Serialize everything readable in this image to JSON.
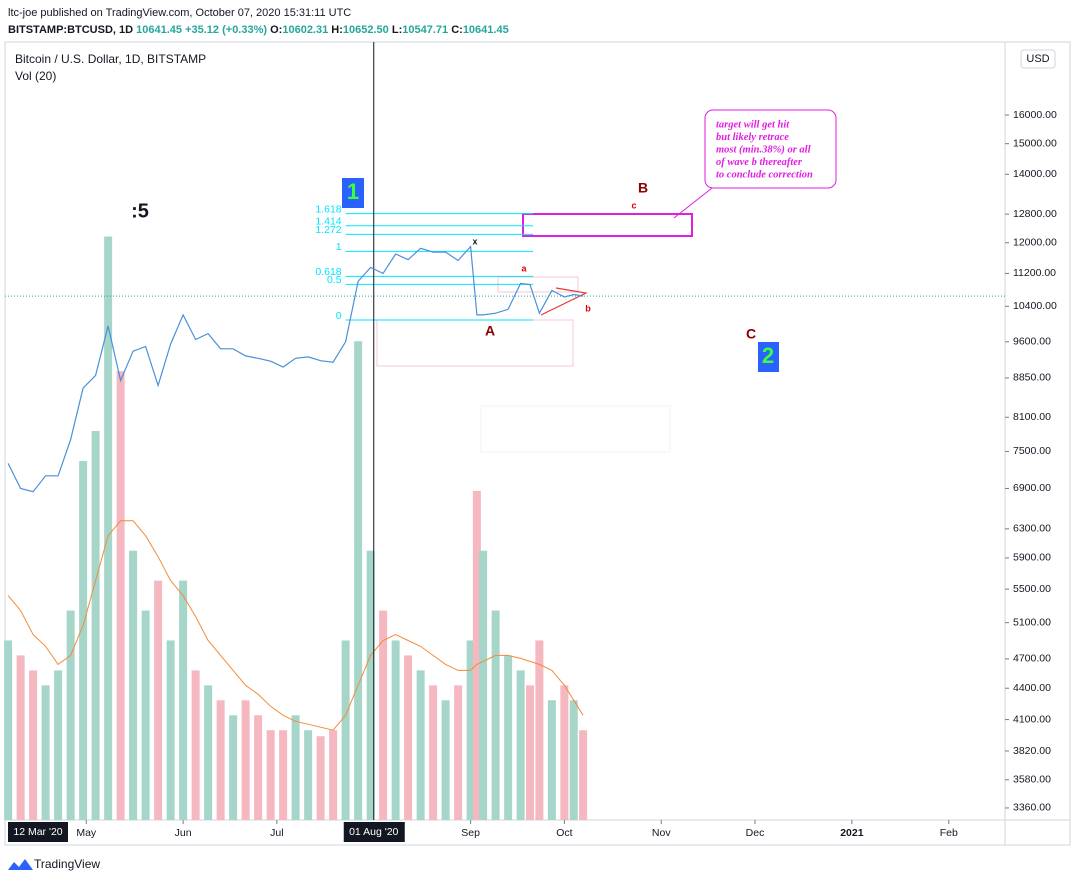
{
  "header": {
    "byline": "ltc-joe published on TradingView.com, October 07, 2020 15:31:11 UTC",
    "symbol": "BITSTAMP:BTCUSD, 1D",
    "last": "10641.45",
    "change": "+35.12 (+0.33%)",
    "ohlc": [
      {
        "label": "O:",
        "value": "10602.31"
      },
      {
        "label": "H:",
        "value": "10652.50"
      },
      {
        "label": "L:",
        "value": "10547.71"
      },
      {
        "label": "C:",
        "value": "10641.45"
      }
    ]
  },
  "chart_data": {
    "type": "line",
    "title": "Bitcoin / U.S. Dollar, 1D, BITSTAMP",
    "volume_title": "Vol (20)",
    "currency": "USD",
    "log_scale": true,
    "color": "#4a90d9",
    "x": [
      "2020-04-06",
      "2020-04-10",
      "2020-04-14",
      "2020-04-18",
      "2020-04-22",
      "2020-04-26",
      "2020-04-30",
      "2020-05-04",
      "2020-05-08",
      "2020-05-12",
      "2020-05-16",
      "2020-05-20",
      "2020-05-24",
      "2020-05-28",
      "2020-06-01",
      "2020-06-05",
      "2020-06-09",
      "2020-06-13",
      "2020-06-17",
      "2020-06-21",
      "2020-06-25",
      "2020-06-29",
      "2020-07-03",
      "2020-07-07",
      "2020-07-11",
      "2020-07-15",
      "2020-07-19",
      "2020-07-23",
      "2020-07-27",
      "2020-07-31",
      "2020-08-04",
      "2020-08-08",
      "2020-08-12",
      "2020-08-16",
      "2020-08-20",
      "2020-08-24",
      "2020-08-28",
      "2020-09-01",
      "2020-09-03",
      "2020-09-05",
      "2020-09-09",
      "2020-09-13",
      "2020-09-17",
      "2020-09-20",
      "2020-09-23",
      "2020-09-27",
      "2020-10-01",
      "2020-10-04",
      "2020-10-07"
    ],
    "values": [
      7300,
      6900,
      6850,
      7100,
      7100,
      7700,
      8650,
      8900,
      9950,
      8800,
      9400,
      9500,
      8700,
      9550,
      10200,
      9650,
      9780,
      9450,
      9450,
      9300,
      9250,
      9190,
      9070,
      9250,
      9280,
      9200,
      9170,
      9600,
      11000,
      11350,
      11200,
      11700,
      11550,
      11850,
      11750,
      11750,
      11530,
      11900,
      10200,
      10200,
      10240,
      10330,
      10950,
      10920,
      10240,
      10780,
      10620,
      10680,
      10641.45
    ],
    "volume": [
      60,
      55,
      50,
      45,
      50,
      70,
      120,
      130,
      195,
      150,
      90,
      70,
      80,
      60,
      80,
      50,
      45,
      40,
      35,
      40,
      35,
      30,
      30,
      35,
      30,
      28,
      30,
      60,
      160,
      90,
      70,
      60,
      55,
      50,
      45,
      40,
      45,
      60,
      110,
      90,
      70,
      55,
      50,
      45,
      60,
      40,
      45,
      40,
      30
    ],
    "volume_ma": [
      75,
      70,
      62,
      58,
      52,
      55,
      65,
      80,
      95,
      100,
      100,
      95,
      88,
      80,
      75,
      68,
      60,
      55,
      50,
      45,
      42,
      38,
      35,
      33,
      32,
      31,
      30,
      35,
      45,
      55,
      60,
      62,
      60,
      58,
      55,
      52,
      50,
      50,
      52,
      53,
      55,
      55,
      54,
      53,
      52,
      50,
      45,
      40,
      35
    ],
    "vlim": [
      0,
      260
    ],
    "volume_ma_color": "#f28c38",
    "up_color": "#a5d6c9",
    "down_color": "#f5b7c0",
    "xlim": [
      "2020-04-05",
      "2021-02-19"
    ],
    "xticks": [
      {
        "value": "2020-05-01",
        "label": "May"
      },
      {
        "value": "2020-06-01",
        "label": "Jun"
      },
      {
        "value": "2020-07-01",
        "label": "Jul"
      },
      {
        "value": "2020-09-01",
        "label": "Sep"
      },
      {
        "value": "2020-10-01",
        "label": "Oct"
      },
      {
        "value": "2020-11-01",
        "label": "Nov"
      },
      {
        "value": "2020-12-01",
        "label": "Dec"
      },
      {
        "value": "2021-01-01",
        "label": "2021"
      },
      {
        "value": "2021-02-01",
        "label": "Feb"
      }
    ],
    "start_label": "12 Mar '20",
    "crosshair": {
      "value": "2020-08-01",
      "label": "01 Aug '20"
    },
    "ylim": [
      3270,
      18860
    ],
    "yticks": [
      {
        "value": 16000,
        "label": "16000.00"
      },
      {
        "value": 15000,
        "label": "15000.00"
      },
      {
        "value": 14000,
        "label": "14000.00"
      },
      {
        "value": 12800,
        "label": "12800.00"
      },
      {
        "value": 12000,
        "label": "12000.00"
      },
      {
        "value": 11200,
        "label": "11200.00"
      },
      {
        "value": 10400,
        "label": "10400.00"
      },
      {
        "value": 9600,
        "label": "9600.00"
      },
      {
        "value": 8850,
        "label": "8850.00"
      },
      {
        "value": 8100,
        "label": "8100.00"
      },
      {
        "value": 7500,
        "label": "7500.00"
      },
      {
        "value": 6900,
        "label": "6900.00"
      },
      {
        "value": 6300,
        "label": "6300.00"
      },
      {
        "value": 5900,
        "label": "5900.00"
      },
      {
        "value": 5500,
        "label": "5500.00"
      },
      {
        "value": 5100,
        "label": "5100.00"
      },
      {
        "value": 4700,
        "label": "4700.00"
      },
      {
        "value": 4400,
        "label": "4400.00"
      },
      {
        "value": 4100,
        "label": "4100.00"
      },
      {
        "value": 3820,
        "label": "3820.00"
      },
      {
        "value": 3580,
        "label": "3580.00"
      },
      {
        "value": 3360,
        "label": "3360.00"
      }
    ],
    "fib": {
      "levels": [
        1.618,
        1.414,
        1.272,
        1,
        0.618,
        0.5,
        0
      ],
      "price_0": 10084,
      "price_1": 11770,
      "start": "2020-07-23",
      "end": "2020-09-21",
      "color": "#00e5ff"
    },
    "annotations": {
      "wave5": ":5",
      "wave1": "1",
      "wave2": "2",
      "B": "B",
      "c": "c",
      "A": "A",
      "a": "a",
      "b": "b",
      "C": "C",
      "x": "x",
      "note": [
        "target will get hit",
        "but likely retrace",
        "most (min.38%) or all",
        "of wave b thereafter",
        "to conclude correction"
      ]
    }
  },
  "footer": {
    "brand": "TradingView"
  }
}
